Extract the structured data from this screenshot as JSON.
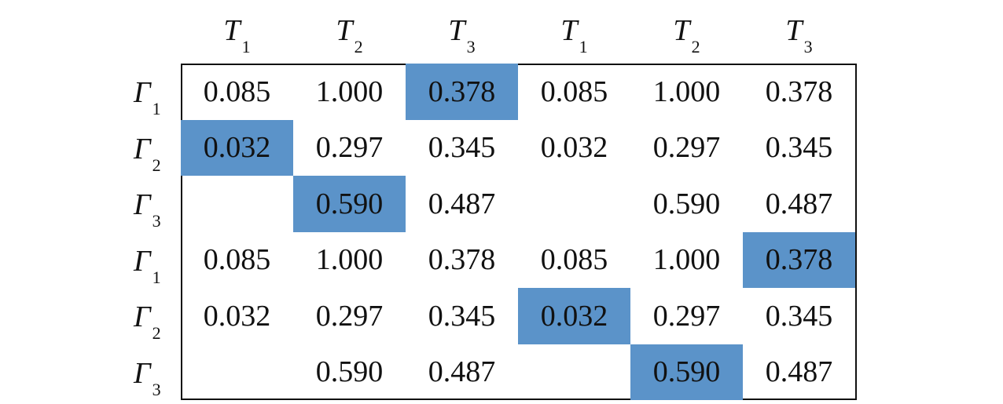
{
  "columns": [
    {
      "symbol": "T",
      "subscript": "1"
    },
    {
      "symbol": "T",
      "subscript": "2"
    },
    {
      "symbol": "T",
      "subscript": "3"
    },
    {
      "symbol": "T",
      "subscript": "1"
    },
    {
      "symbol": "T",
      "subscript": "2"
    },
    {
      "symbol": "T",
      "subscript": "3"
    }
  ],
  "rows": [
    {
      "symbol": "Γ",
      "subscript": "1",
      "cells": [
        "0.085",
        "1.000",
        "0.378",
        "0.085",
        "1.000",
        "0.378"
      ],
      "highlight": [
        false,
        false,
        true,
        false,
        false,
        false
      ]
    },
    {
      "symbol": "Γ",
      "subscript": "2",
      "cells": [
        "0.032",
        "0.297",
        "0.345",
        "0.032",
        "0.297",
        "0.345"
      ],
      "highlight": [
        true,
        false,
        false,
        false,
        false,
        false
      ]
    },
    {
      "symbol": "Γ",
      "subscript": "3",
      "cells": [
        "",
        "0.590",
        "0.487",
        "",
        "0.590",
        "0.487"
      ],
      "highlight": [
        false,
        true,
        false,
        false,
        false,
        false
      ]
    },
    {
      "symbol": "Γ",
      "subscript": "1",
      "cells": [
        "0.085",
        "1.000",
        "0.378",
        "0.085",
        "1.000",
        "0.378"
      ],
      "highlight": [
        false,
        false,
        false,
        false,
        false,
        true
      ]
    },
    {
      "symbol": "Γ",
      "subscript": "2",
      "cells": [
        "0.032",
        "0.297",
        "0.345",
        "0.032",
        "0.297",
        "0.345"
      ],
      "highlight": [
        false,
        false,
        false,
        true,
        false,
        false
      ]
    },
    {
      "symbol": "Γ",
      "subscript": "3",
      "cells": [
        "",
        "0.590",
        "0.487",
        "",
        "0.590",
        "0.487"
      ],
      "highlight": [
        false,
        false,
        false,
        false,
        true,
        false
      ]
    }
  ],
  "colors": {
    "highlight": "#5b93c9",
    "border": "#111111",
    "text": "#111111"
  }
}
